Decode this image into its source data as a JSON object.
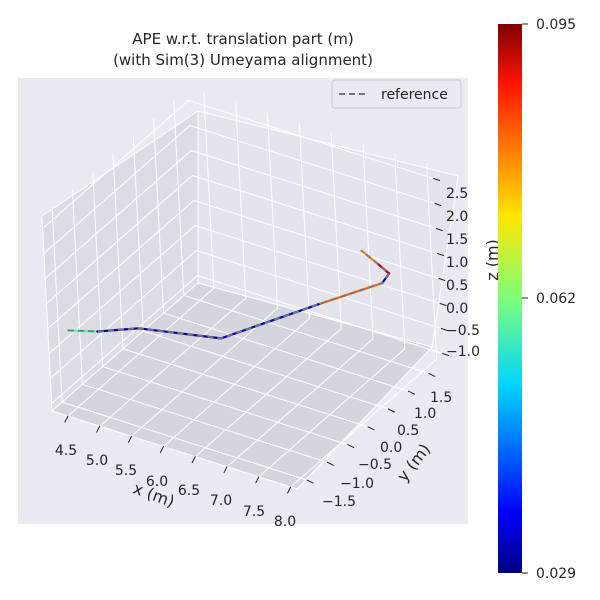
{
  "chart_data": {
    "type": "line",
    "projection": "3d",
    "title": "APE w.r.t. translation part (m)",
    "subtitle": "(with Sim(3) Umeyama alignment)",
    "xlabel": "x (m)",
    "ylabel": "y (m)",
    "zlabel": "z (m)",
    "x_ticks": [
      "4.5",
      "5.0",
      "5.5",
      "6.0",
      "6.5",
      "7.0",
      "7.5",
      "8.0"
    ],
    "y_ticks": [
      "−1.5",
      "−1.0",
      "−0.5",
      "0.0",
      "0.5",
      "1.0",
      "1.5"
    ],
    "z_ticks": [
      "−1.0",
      "−0.5",
      "0.0",
      "0.5",
      "1.0",
      "1.5",
      "2.0",
      "2.5"
    ],
    "legend": {
      "position": "top-right",
      "entries": [
        "reference"
      ]
    },
    "colorbar": {
      "colormap": "jet",
      "min": 0.029,
      "max": 0.095,
      "tick_labels": [
        "0.095",
        "0.062",
        "0.029"
      ]
    },
    "series": [
      {
        "name": "reference",
        "style": "dashed",
        "color": "#777777",
        "points": [
          {
            "x": 4.2,
            "y": -1.2,
            "z": 0.05
          },
          {
            "x": 4.6,
            "y": -1.1,
            "z": 0.12
          },
          {
            "x": 5.4,
            "y": -1.3,
            "z": 0.65
          },
          {
            "x": 6.5,
            "y": -1.0,
            "z": 0.68
          },
          {
            "x": 7.1,
            "y": 0.5,
            "z": 0.55
          },
          {
            "x": 7.7,
            "y": 1.1,
            "z": 0.78
          },
          {
            "x": 7.75,
            "y": 1.2,
            "z": 0.92
          },
          {
            "x": 7.7,
            "y": 1.0,
            "z": 1.25
          },
          {
            "x": 7.6,
            "y": 0.8,
            "z": 1.6
          }
        ]
      }
    ],
    "estimate_segments": [
      {
        "from": {
          "x": 4.2,
          "y": -1.2,
          "z": 0.05
        },
        "to": {
          "x": 4.6,
          "y": -1.1,
          "z": 0.12
        },
        "error": 0.058
      },
      {
        "from": {
          "x": 4.6,
          "y": -1.1,
          "z": 0.12
        },
        "to": {
          "x": 5.4,
          "y": -1.3,
          "z": 0.65
        },
        "error": 0.03
      },
      {
        "from": {
          "x": 5.4,
          "y": -1.3,
          "z": 0.65
        },
        "to": {
          "x": 6.5,
          "y": -1.0,
          "z": 0.68
        },
        "error": 0.031
      },
      {
        "from": {
          "x": 6.5,
          "y": -1.0,
          "z": 0.68
        },
        "to": {
          "x": 7.1,
          "y": 0.5,
          "z": 0.55
        },
        "error": 0.034
      },
      {
        "from": {
          "x": 7.1,
          "y": 0.5,
          "z": 0.55
        },
        "to": {
          "x": 7.7,
          "y": 1.1,
          "z": 0.78
        },
        "error": 0.08
      },
      {
        "from": {
          "x": 7.7,
          "y": 1.1,
          "z": 0.78
        },
        "to": {
          "x": 7.75,
          "y": 1.2,
          "z": 0.92
        },
        "error": 0.032
      },
      {
        "from": {
          "x": 7.75,
          "y": 1.2,
          "z": 0.92
        },
        "to": {
          "x": 7.7,
          "y": 1.0,
          "z": 1.25
        },
        "error": 0.091
      },
      {
        "from": {
          "x": 7.7,
          "y": 1.0,
          "z": 1.25
        },
        "to": {
          "x": 7.6,
          "y": 0.8,
          "z": 1.6
        },
        "error": 0.078
      }
    ]
  }
}
